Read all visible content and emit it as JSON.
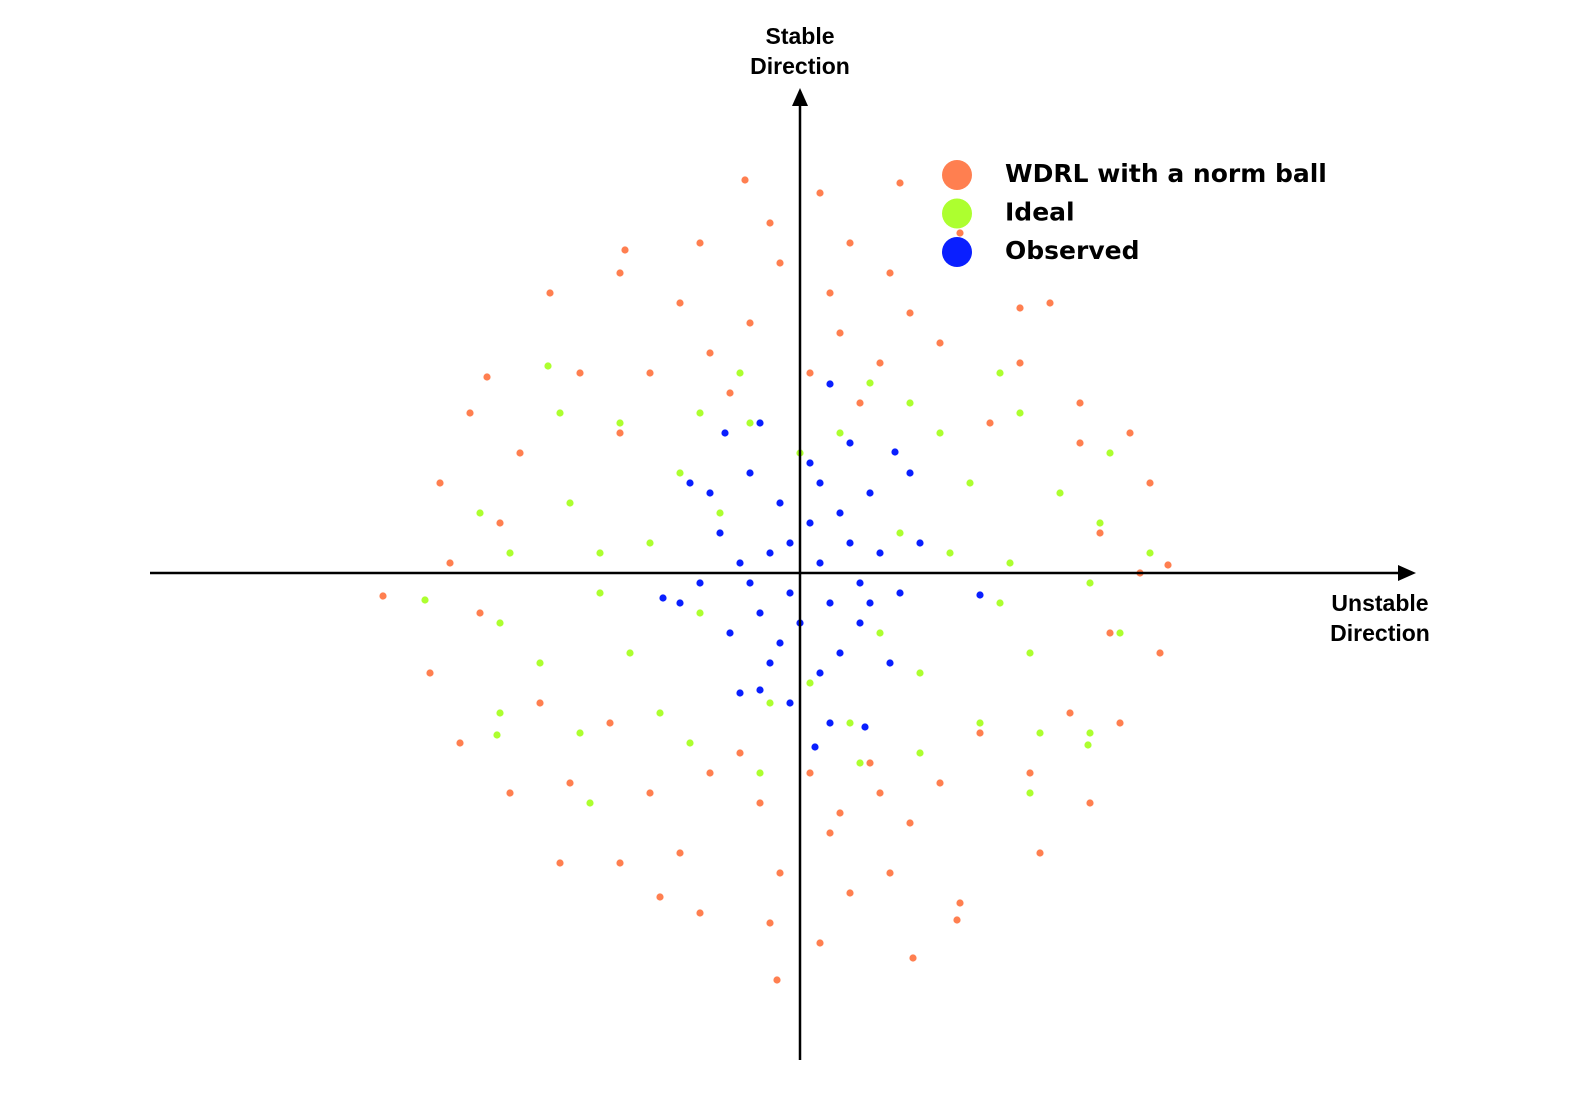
{
  "chart_data": {
    "type": "scatter",
    "xlabel": "Unstable Direction",
    "ylabel": "Stable Direction",
    "xlim": [
      -6.5,
      6.15
    ],
    "ylim": [
      -4.87,
      4.83
    ],
    "legend": "upper right",
    "series": [
      {
        "name": "WDRL with a norm ball",
        "color": "#ff7f50",
        "x": [
          -0.5,
          0.3,
          -0.9,
          0.8,
          -0.2,
          0.5,
          -1.2,
          1.1,
          0.1,
          -0.7,
          0.6,
          -1.5,
          1.4,
          -0.3,
          0.2,
          0.9,
          -1.0,
          1.6,
          -1.8,
          0.4,
          -0.4,
          0.3,
          -0.9,
          0.8,
          -0.2,
          0.5,
          -1.2,
          1.1,
          0.1,
          -0.6,
          0.7,
          -1.5,
          1.4,
          -0.3,
          0.2,
          0.9,
          -1.0,
          1.6,
          -1.8,
          0.4,
          -3.0,
          -3.2,
          -2.8,
          -2.6,
          3.0,
          3.1,
          2.8,
          2.7,
          -2.2,
          2.2,
          -2.3,
          2.3,
          -1.8,
          1.9,
          -1.9,
          1.8,
          -3.5,
          3.4,
          -3.3,
          3.3,
          -3.4,
          3.2,
          -2.5,
          2.5,
          -2.4,
          2.4,
          -0.55,
          1.0,
          -0.23,
          1.13,
          -4.17,
          3.68,
          2.2,
          -3.13,
          2.8,
          1.57,
          -1.4,
          -1.75,
          -2.9,
          2.9,
          -3.7,
          3.6,
          -3.6,
          3.5
        ],
        "values": [
          2.5,
          2.8,
          2.2,
          2.1,
          3.1,
          3.3,
          2.7,
          2.6,
          2.0,
          1.8,
          1.7,
          2.0,
          2.3,
          3.5,
          3.8,
          3.0,
          3.3,
          3.4,
          3.0,
          2.4,
          -2.3,
          -2.6,
          -2.0,
          -2.2,
          -3.0,
          -3.2,
          -2.8,
          -2.5,
          -2.0,
          -1.8,
          -1.9,
          -2.2,
          -2.1,
          -3.5,
          -3.7,
          -3.0,
          -3.4,
          -3.3,
          -2.9,
          -2.4,
          0.5,
          -0.4,
          1.2,
          -1.3,
          0.4,
          -0.6,
          1.3,
          -1.4,
          2.0,
          2.1,
          -2.1,
          -2.0,
          1.4,
          1.5,
          -1.5,
          -1.6,
          0.1,
          0.0,
          1.6,
          1.4,
          -1.7,
          -1.5,
          2.8,
          2.7,
          -2.9,
          -2.8,
          3.93,
          3.9,
          -4.07,
          -3.85,
          -0.23,
          0.08,
          2.65,
          1.96,
          1.7,
          -3.47,
          -3.24,
          3.23,
          -2.2,
          -2.3,
          -1.0,
          -0.8,
          0.9,
          0.9
        ]
      },
      {
        "name": "Ideal",
        "color": "#adff2f",
        "x": [
          -1.5,
          -2.0,
          -1.7,
          -2.3,
          -1.2,
          -2.6,
          -2.9,
          -1.8,
          -1.4,
          -3.2,
          -3.0,
          -2.4,
          -2.2,
          -1.0,
          -0.8,
          1.5,
          2.0,
          1.7,
          2.3,
          1.2,
          2.6,
          2.9,
          1.8,
          1.4,
          3.2,
          3.0,
          2.4,
          2.2,
          1.0,
          0.8,
          -0.5,
          0.4,
          0.0,
          -0.3,
          0.5,
          0.1,
          -0.6,
          0.7,
          -0.4,
          0.6,
          -3.75,
          3.5,
          3.1,
          -3.0,
          2.9,
          -2.52,
          2.0,
          -2.1,
          2.3,
          -1.0,
          1.1,
          -1.1,
          1.2,
          -2.0,
          2.1,
          2.88,
          -3.03
        ],
        "values": [
          0.3,
          -0.2,
          -0.8,
          0.7,
          1.0,
          -0.9,
          0.2,
          1.5,
          -1.4,
          0.6,
          -0.5,
          1.6,
          -1.6,
          -0.4,
          0.6,
          0.2,
          -0.3,
          0.9,
          -0.8,
          -1.0,
          0.8,
          -0.1,
          -1.5,
          1.4,
          -0.6,
          0.5,
          -1.6,
          1.6,
          0.4,
          -0.6,
          1.5,
          1.4,
          1.2,
          -1.3,
          -1.5,
          -1.1,
          2.0,
          1.9,
          -2.0,
          -1.9,
          -0.27,
          0.2,
          1.2,
          -1.4,
          -1.6,
          2.07,
          2.0,
          -2.3,
          -2.2,
          1.6,
          1.7,
          -1.7,
          -1.8,
          0.2,
          0.1,
          -1.72,
          -1.62
        ]
      },
      {
        "name": "Observed",
        "color": "#0a1fff",
        "x": [
          0.2,
          -0.1,
          0.3,
          -0.3,
          0.1,
          -0.4,
          0.5,
          -0.6,
          0.6,
          -0.2,
          0.4,
          -0.7,
          0.8,
          -0.8,
          0.2,
          -0.3,
          0.7,
          -0.5,
          1.0,
          -1.0,
          0.9,
          -0.9,
          0.1,
          -0.1,
          1.2,
          -1.2,
          0.5,
          -0.6,
          1.1,
          -1.1,
          0.3,
          -0.4,
          0.6,
          -0.1,
          0.0,
          0.2,
          -0.2,
          0.4,
          -0.5,
          0.7,
          0.3,
          0.15,
          -0.75,
          0.95,
          1.8,
          -1.37,
          -0.4,
          0.65
        ],
        "values": [
          0.1,
          -0.2,
          -0.3,
          0.2,
          0.5,
          -0.4,
          0.3,
          0.1,
          -0.5,
          0.7,
          -0.8,
          -0.6,
          0.2,
          0.4,
          -1.0,
          -0.9,
          0.8,
          1.0,
          -0.2,
          -0.1,
          -0.9,
          0.8,
          1.1,
          -1.3,
          0.3,
          -0.3,
          1.3,
          -1.2,
          1.0,
          0.9,
          -1.5,
          1.5,
          -0.1,
          0.3,
          -0.5,
          0.9,
          -0.7,
          0.6,
          -0.1,
          -0.3,
          1.89,
          -1.74,
          1.4,
          1.21,
          -0.22,
          -0.25,
          -1.17,
          -1.54
        ]
      }
    ]
  }
}
